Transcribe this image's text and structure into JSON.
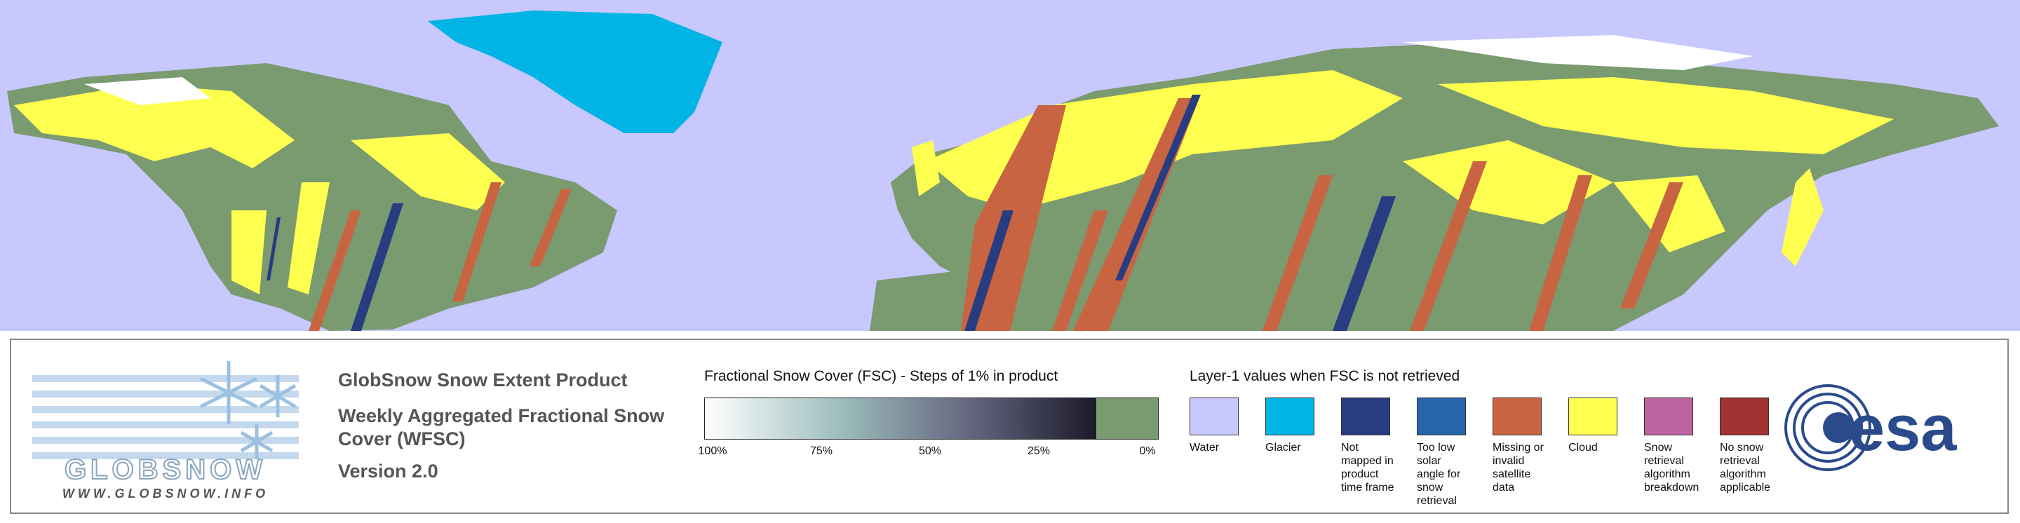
{
  "logo": {
    "name": "GLOBSNOW",
    "url": "WWW.GLOBSNOW.INFO"
  },
  "product": {
    "title": "GlobSnow Snow Extent Product",
    "subtitle": "Weekly Aggregated Fractional Snow Cover (WFSC)",
    "version": "Version 2.0"
  },
  "fsc_legend": {
    "title": "Fractional Snow Cover (FSC) - Steps of 1% in product",
    "ticks": [
      "100%",
      "75%",
      "50%",
      "25%",
      "0%"
    ]
  },
  "layer1_legend": {
    "title": "Layer-1 values when FSC is not retrieved",
    "items": [
      {
        "label": "Water",
        "color": "#c8c8ff"
      },
      {
        "label": "Glacier",
        "color": "#00b4e6"
      },
      {
        "label": "Not mapped in product time frame",
        "color": "#283c82"
      },
      {
        "label": "Too low solar angle for snow retrieval",
        "color": "#2864aa"
      },
      {
        "label": "Missing or invalid satellite data",
        "color": "#c86441"
      },
      {
        "label": "Cloud",
        "color": "#ffff50"
      },
      {
        "label": "Snow retrieval algorithm breakdown",
        "color": "#be64a0"
      },
      {
        "label": "No snow retrieval algorithm applicable",
        "color": "#a03232"
      }
    ]
  },
  "agency": "esa"
}
